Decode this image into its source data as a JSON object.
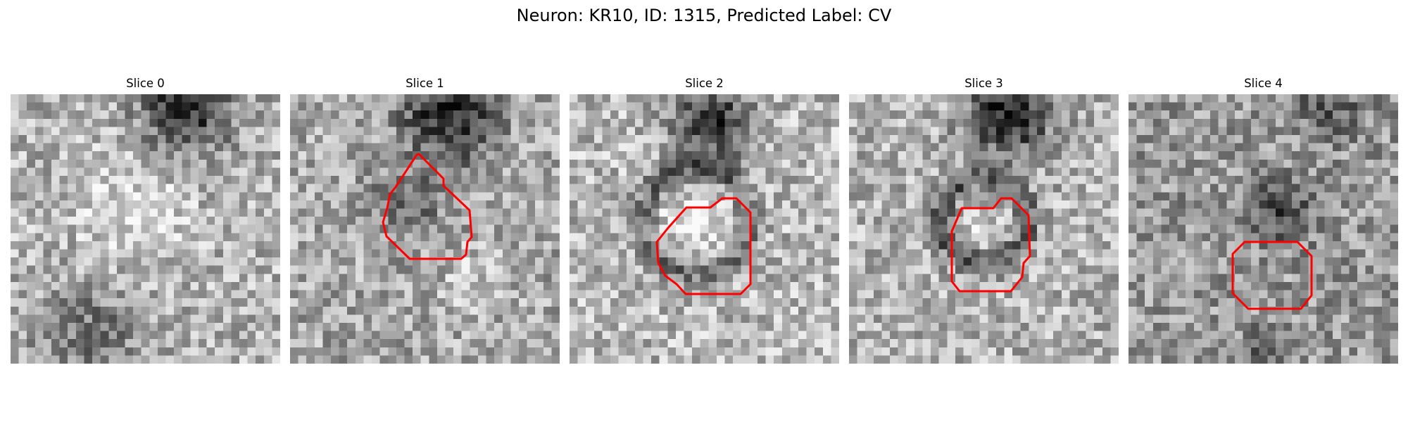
{
  "figure": {
    "title": "Neuron: KR10, ID: 1315, Predicted Label: CV"
  },
  "panels": [
    {
      "title": "Slice 0",
      "has_roi": false
    },
    {
      "title": "Slice 1",
      "has_roi": true
    },
    {
      "title": "Slice 2",
      "has_roi": true
    },
    {
      "title": "Slice 3",
      "has_roi": true
    },
    {
      "title": "Slice 4",
      "has_roi": true
    }
  ],
  "colors": {
    "roi_outline": "#ff0000",
    "colormap": "gray"
  }
}
